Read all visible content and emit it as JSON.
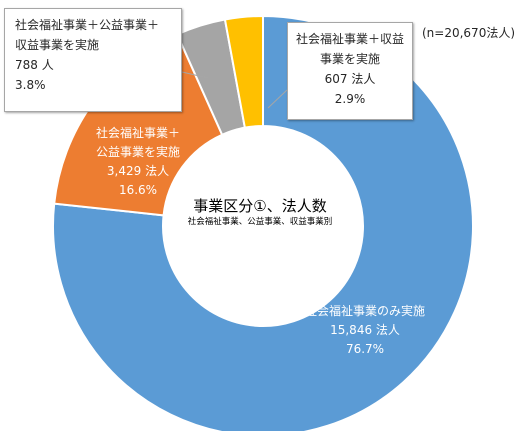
{
  "chart_data": {
    "type": "donut",
    "title": "事業区分①、法人数",
    "subtitle": "社会福祉事業、公益事業、収益事業別",
    "note": "(n=20,670法人)",
    "slices": [
      {
        "name": "社会福祉事業のみ実施",
        "count_label": "15,846 法人",
        "pct_label": "76.7%",
        "value": 76.7,
        "color": "#5b9bd5"
      },
      {
        "name": "社会福祉事業＋公益事業を実施",
        "name_lines": [
          "社会福祉事業＋",
          "公益事業を実施"
        ],
        "count_label": "3,429 法人",
        "pct_label": "16.6%",
        "value": 16.6,
        "color": "#ed7d31"
      },
      {
        "name": "社会福祉事業＋公益事業＋収益事業を実施",
        "name_lines": [
          "社会福祉事業＋公益事業＋",
          "収益事業を実施"
        ],
        "count_label": "788 人",
        "pct_label": "3.8%",
        "value": 3.8,
        "color": "#a5a5a5"
      },
      {
        "name": "社会福祉事業＋収益事業を実施",
        "name_lines": [
          "社会福祉事業＋収益",
          "事業を実施"
        ],
        "count_label": "607 法人",
        "pct_label": "2.9%",
        "value": 2.9,
        "color": "#ffc000"
      }
    ]
  }
}
